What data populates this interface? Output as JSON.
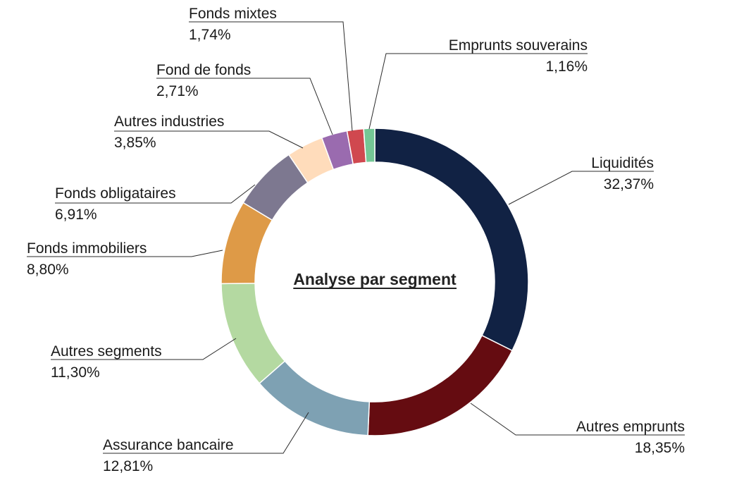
{
  "chart_data": {
    "type": "pie",
    "variant": "donut",
    "title": "Analyse par segment",
    "legend": "none",
    "slices": [
      {
        "label": "Liquidités",
        "value": 32.37,
        "display": "32,37%",
        "color": "#112244"
      },
      {
        "label": "Autres emprunts",
        "value": 18.35,
        "display": "18,35%",
        "color": "#650c11"
      },
      {
        "label": "Assurance bancaire",
        "value": 12.81,
        "display": "12,81%",
        "color": "#7ea1b3"
      },
      {
        "label": "Autres segments",
        "value": 11.3,
        "display": "11,30%",
        "color": "#b4d9a1"
      },
      {
        "label": "Fonds immobiliers",
        "value": 8.8,
        "display": "8,80%",
        "color": "#de9a47"
      },
      {
        "label": "Fonds obligataires",
        "value": 6.91,
        "display": "6,91%",
        "color": "#7d7890"
      },
      {
        "label": "Autres industries",
        "value": 3.85,
        "display": "3,85%",
        "color": "#ffdcbb"
      },
      {
        "label": "Fond de fonds",
        "value": 2.71,
        "display": "2,71%",
        "color": "#9a6baf"
      },
      {
        "label": "Fonds mixtes",
        "value": 1.74,
        "display": "1,74%",
        "color": "#d0484f"
      },
      {
        "label": "Emprunts souverains",
        "value": 1.16,
        "display": "1,16%",
        "color": "#74c795"
      }
    ]
  }
}
